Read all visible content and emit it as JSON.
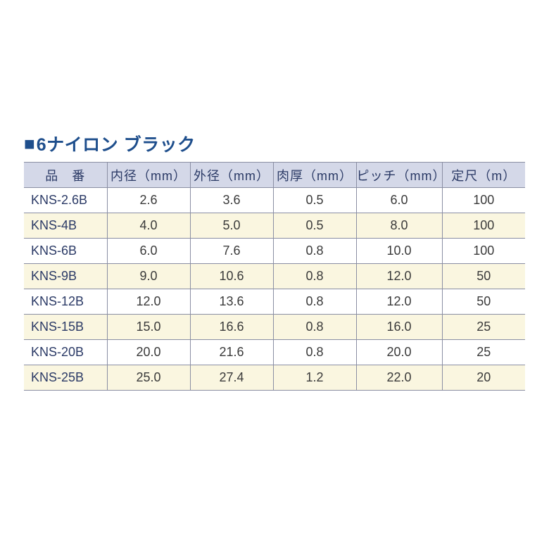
{
  "colors": {
    "title_square": "#1e4e8c",
    "title_text": "#1e4e8c",
    "header_bg": "#d4d8e8",
    "header_text": "#2b3a66",
    "row_alt_bg": "#faf6e0",
    "row_bg": "#ffffff",
    "cell_text": "#3a3a3a",
    "pn_text": "#2b3a66",
    "border": "#8a8ea3"
  },
  "title": "6ナイロン ブラック",
  "table": {
    "columns": [
      {
        "key": "pn",
        "label": "品　番",
        "class": "col-pn"
      },
      {
        "key": "inner",
        "label": "内径（mm）",
        "class": "col-id"
      },
      {
        "key": "outer",
        "label": "外径（mm）",
        "class": "col-od"
      },
      {
        "key": "thick",
        "label": "肉厚（mm）",
        "class": "col-th"
      },
      {
        "key": "pitch",
        "label": "ピッチ（mm）",
        "class": "col-pi"
      },
      {
        "key": "len",
        "label": "定尺（m）",
        "class": "col-le"
      }
    ],
    "rows": [
      {
        "pn": "KNS-2.6B",
        "inner": "2.6",
        "outer": "3.6",
        "thick": "0.5",
        "pitch": "6.0",
        "len": "100"
      },
      {
        "pn": "KNS-4B",
        "inner": "4.0",
        "outer": "5.0",
        "thick": "0.5",
        "pitch": "8.0",
        "len": "100"
      },
      {
        "pn": "KNS-6B",
        "inner": "6.0",
        "outer": "7.6",
        "thick": "0.8",
        "pitch": "10.0",
        "len": "100"
      },
      {
        "pn": "KNS-9B",
        "inner": "9.0",
        "outer": "10.6",
        "thick": "0.8",
        "pitch": "12.0",
        "len": "50"
      },
      {
        "pn": "KNS-12B",
        "inner": "12.0",
        "outer": "13.6",
        "thick": "0.8",
        "pitch": "12.0",
        "len": "50"
      },
      {
        "pn": "KNS-15B",
        "inner": "15.0",
        "outer": "16.6",
        "thick": "0.8",
        "pitch": "16.0",
        "len": "25"
      },
      {
        "pn": "KNS-20B",
        "inner": "20.0",
        "outer": "21.6",
        "thick": "0.8",
        "pitch": "20.0",
        "len": "25"
      },
      {
        "pn": "KNS-25B",
        "inner": "25.0",
        "outer": "27.4",
        "thick": "1.2",
        "pitch": "22.0",
        "len": "20"
      }
    ]
  }
}
